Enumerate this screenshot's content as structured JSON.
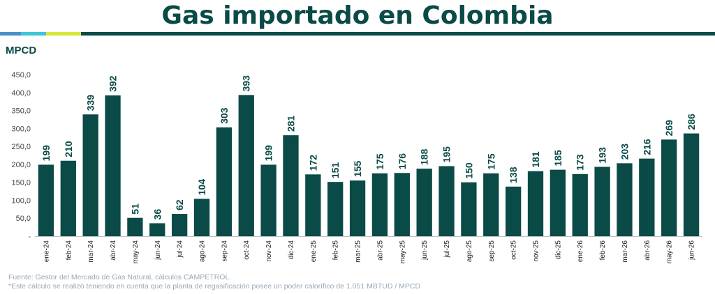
{
  "title": "Gas importado en Colombia",
  "colors": {
    "bar": "#0a4a47",
    "title": "#0a4a47",
    "accent_blue": "#4a90c8",
    "accent_cyan": "#3ec6d6",
    "accent_lime": "#d8e63c",
    "accent_teal": "#0a4a47"
  },
  "chart_data": {
    "type": "bar",
    "ylabel": "MPCD",
    "ylim": [
      0,
      450
    ],
    "ytick_labels": [
      "-",
      "50,0",
      "100,0",
      "150,0",
      "200,0",
      "250,0",
      "300,0",
      "350,0",
      "400,0",
      "450,0"
    ],
    "categories": [
      "ene-24",
      "feb-24",
      "mar-24",
      "abr-24",
      "may-24",
      "jun-24",
      "jul-24",
      "ago-24",
      "sep-24",
      "oct-24",
      "nov-24",
      "dic-24",
      "ene-25",
      "feb-25",
      "mar-25",
      "abr-25",
      "may-25",
      "jun-25",
      "jul-25",
      "ago-25",
      "sep-25",
      "oct-25",
      "nov-25",
      "dic-25",
      "ene-26",
      "feb-26",
      "mar-26",
      "abr-26",
      "may-26",
      "jun-26"
    ],
    "values": [
      199,
      210,
      339,
      392,
      51,
      36,
      62,
      104,
      303,
      393,
      199,
      281,
      172,
      151,
      155,
      175,
      176,
      188,
      195,
      150,
      175,
      138,
      181,
      185,
      173,
      193,
      203,
      216,
      269,
      286
    ],
    "grid": false,
    "legend": "none"
  },
  "footnotes": {
    "source": "Fuente: Gestor del Mercado de Gas Natural, cálculos CAMPETROL.",
    "note": "*Este cálculo se realizó teniendo en cuenta que la planta de regasificación posee un poder calorífico de 1.051 MBTUD / MPCD"
  }
}
